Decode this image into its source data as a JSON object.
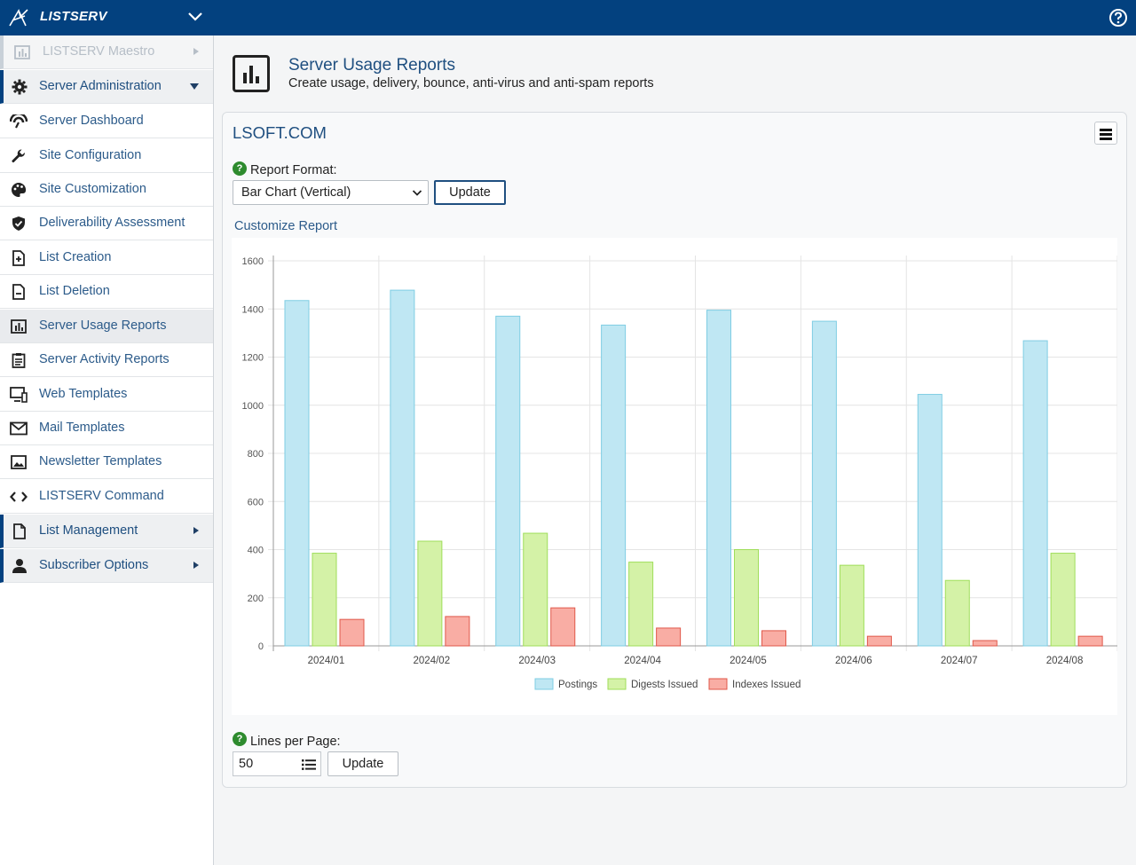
{
  "header": {
    "brand": "LISTSERV"
  },
  "sidebar": {
    "items": [
      {
        "label": "LISTSERV Maestro",
        "icon": "chart-icon"
      },
      {
        "label": "Server Administration",
        "icon": "gear-icon"
      },
      {
        "label": "Server Dashboard",
        "icon": "dashboard-icon"
      },
      {
        "label": "Site Configuration",
        "icon": "wrench-icon"
      },
      {
        "label": "Site Customization",
        "icon": "palette-icon"
      },
      {
        "label": "Deliverability Assessment",
        "icon": "shield-check-icon"
      },
      {
        "label": "List Creation",
        "icon": "file-plus-icon"
      },
      {
        "label": "List Deletion",
        "icon": "file-minus-icon"
      },
      {
        "label": "Server Usage Reports",
        "icon": "chart-icon"
      },
      {
        "label": "Server Activity Reports",
        "icon": "clipboard-icon"
      },
      {
        "label": "Web Templates",
        "icon": "monitor-icon"
      },
      {
        "label": "Mail Templates",
        "icon": "envelope-icon"
      },
      {
        "label": "Newsletter Templates",
        "icon": "image-icon"
      },
      {
        "label": "LISTSERV Command",
        "icon": "code-icon"
      },
      {
        "label": "List Management",
        "icon": "file-icon"
      },
      {
        "label": "Subscriber Options",
        "icon": "user-icon"
      }
    ]
  },
  "page": {
    "title": "Server Usage Reports",
    "subtitle": "Create usage, delivery, bounce, anti-virus and anti-spam reports"
  },
  "panel": {
    "title": "LSOFT.COM",
    "report_format_label": "Report Format:",
    "report_format_value": "Bar Chart (Vertical)",
    "update_label": "Update",
    "customize_label": "Customize Report",
    "lines_label": "Lines per Page:",
    "lines_value": "50",
    "lines_update_label": "Update"
  },
  "colors": {
    "header": "#03417f",
    "postings": "#bfe7f3",
    "digests": "#d4f2a7",
    "indexes": "#f9ada4"
  },
  "chart_data": {
    "type": "bar",
    "categories": [
      "2024/01",
      "2024/02",
      "2024/03",
      "2024/04",
      "2024/05",
      "2024/06",
      "2024/07",
      "2024/08"
    ],
    "series": [
      {
        "name": "Postings",
        "values": [
          1435,
          1478,
          1370,
          1333,
          1395,
          1349,
          1045,
          1268
        ]
      },
      {
        "name": "Digests Issued",
        "values": [
          385,
          435,
          468,
          348,
          400,
          335,
          272,
          385
        ]
      },
      {
        "name": "Indexes Issued",
        "values": [
          110,
          122,
          158,
          74,
          63,
          40,
          22,
          40
        ]
      }
    ],
    "yticks": [
      "0",
      "200",
      "400",
      "600",
      "800",
      "1000",
      "1200",
      "1400",
      "1600"
    ],
    "ylim": [
      0,
      1600
    ],
    "legend": "bottom",
    "grid": true
  }
}
